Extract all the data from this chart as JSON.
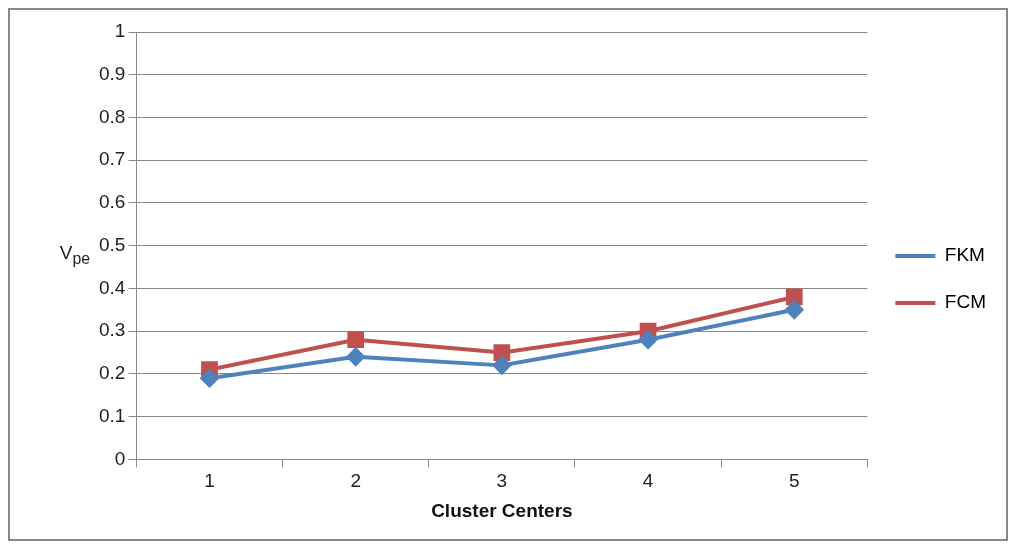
{
  "chart_data": {
    "type": "line",
    "xlabel": "Cluster Centers",
    "ylabel": "V$_{pe}$",
    "categories": [
      "1",
      "2",
      "3",
      "4",
      "5"
    ],
    "series": [
      {
        "name": "FKM",
        "color": "#4f81bd",
        "marker": "diamond",
        "values": [
          0.19,
          0.24,
          0.22,
          0.28,
          0.35
        ]
      },
      {
        "name": "FCM",
        "color": "#c0504d",
        "marker": "square",
        "values": [
          0.21,
          0.28,
          0.25,
          0.3,
          0.38
        ]
      }
    ],
    "ylim": [
      0,
      1
    ],
    "yticks": [
      0,
      {
        "value": 0.1,
        "label": "0.1"
      },
      {
        "value": 0.2,
        "label": "0.2"
      },
      {
        "value": 0.3,
        "label": "0.3"
      },
      {
        "value": 0.4,
        "label": "0.4"
      },
      {
        "value": 0.5,
        "label": "0.5"
      },
      {
        "value": 0.6,
        "label": "0.6"
      },
      {
        "value": 0.7,
        "label": "0.7"
      },
      {
        "value": 0.8,
        "label": "0.8"
      },
      {
        "value": 0.9,
        "label": "0.9"
      },
      1
    ],
    "grid": "y",
    "legend": "right",
    "line_style": "solid"
  }
}
